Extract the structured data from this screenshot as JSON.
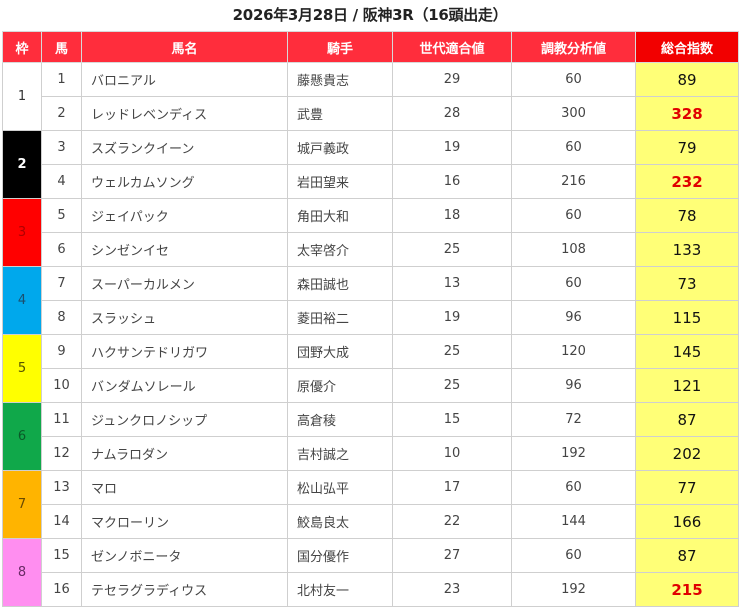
{
  "title": "2026年3月28日 / 阪神3R（16頭出走）",
  "headers": {
    "waku": "枠",
    "uma": "馬",
    "horse_name": "馬名",
    "jockey": "騎手",
    "generation_fit": "世代適合値",
    "training_analysis": "調教分析値",
    "total_index": "総合指数"
  },
  "colors": {
    "header_bg": "#ff2d3c",
    "header_total_bg": "#f20000",
    "total_cell_bg": "#ffff77",
    "highlight_text": "#e00000"
  },
  "frames": [
    {
      "waku": "1",
      "bg": "#ffffff",
      "fg": "#333333"
    },
    {
      "waku": "2",
      "bg": "#000000",
      "fg": "#ffffff"
    },
    {
      "waku": "3",
      "bg": "#ff0000",
      "fg": "#b00000"
    },
    {
      "waku": "4",
      "bg": "#00a8ec",
      "fg": "#1a4f6e"
    },
    {
      "waku": "5",
      "bg": "#ffff00",
      "fg": "#555500"
    },
    {
      "waku": "6",
      "bg": "#10a84a",
      "fg": "#0a5a28"
    },
    {
      "waku": "7",
      "bg": "#ffb400",
      "fg": "#6a4a00"
    },
    {
      "waku": "8",
      "bg": "#ff8ef0",
      "fg": "#6a2a66"
    }
  ],
  "rows": [
    {
      "uma": "1",
      "name": "バロニアル",
      "jockey": "藤懸貴志",
      "gen": "29",
      "train": "60",
      "total": "89",
      "hot": false
    },
    {
      "uma": "2",
      "name": "レッドレベンディス",
      "jockey": "武豊",
      "gen": "28",
      "train": "300",
      "total": "328",
      "hot": true
    },
    {
      "uma": "3",
      "name": "スズランクイーン",
      "jockey": "城戸義政",
      "gen": "19",
      "train": "60",
      "total": "79",
      "hot": false
    },
    {
      "uma": "4",
      "name": "ウェルカムソング",
      "jockey": "岩田望来",
      "gen": "16",
      "train": "216",
      "total": "232",
      "hot": true
    },
    {
      "uma": "5",
      "name": "ジェイパック",
      "jockey": "角田大和",
      "gen": "18",
      "train": "60",
      "total": "78",
      "hot": false
    },
    {
      "uma": "6",
      "name": "シンゼンイセ",
      "jockey": "太宰啓介",
      "gen": "25",
      "train": "108",
      "total": "133",
      "hot": false
    },
    {
      "uma": "7",
      "name": "スーパーカルメン",
      "jockey": "森田誠也",
      "gen": "13",
      "train": "60",
      "total": "73",
      "hot": false
    },
    {
      "uma": "8",
      "name": "スラッシュ",
      "jockey": "菱田裕二",
      "gen": "19",
      "train": "96",
      "total": "115",
      "hot": false
    },
    {
      "uma": "9",
      "name": "ハクサンテドリガワ",
      "jockey": "団野大成",
      "gen": "25",
      "train": "120",
      "total": "145",
      "hot": false
    },
    {
      "uma": "10",
      "name": "バンダムソレール",
      "jockey": "原優介",
      "gen": "25",
      "train": "96",
      "total": "121",
      "hot": false
    },
    {
      "uma": "11",
      "name": "ジュンクロノシップ",
      "jockey": "高倉稜",
      "gen": "15",
      "train": "72",
      "total": "87",
      "hot": false
    },
    {
      "uma": "12",
      "name": "ナムラロダン",
      "jockey": "吉村誠之",
      "gen": "10",
      "train": "192",
      "total": "202",
      "hot": false
    },
    {
      "uma": "13",
      "name": "マロ",
      "jockey": "松山弘平",
      "gen": "17",
      "train": "60",
      "total": "77",
      "hot": false
    },
    {
      "uma": "14",
      "name": "マクローリン",
      "jockey": "鮫島良太",
      "gen": "22",
      "train": "144",
      "total": "166",
      "hot": false
    },
    {
      "uma": "15",
      "name": "ゼンノボニータ",
      "jockey": "国分優作",
      "gen": "27",
      "train": "60",
      "total": "87",
      "hot": false
    },
    {
      "uma": "16",
      "name": "テセラグラディウス",
      "jockey": "北村友一",
      "gen": "23",
      "train": "192",
      "total": "215",
      "hot": true
    }
  ]
}
